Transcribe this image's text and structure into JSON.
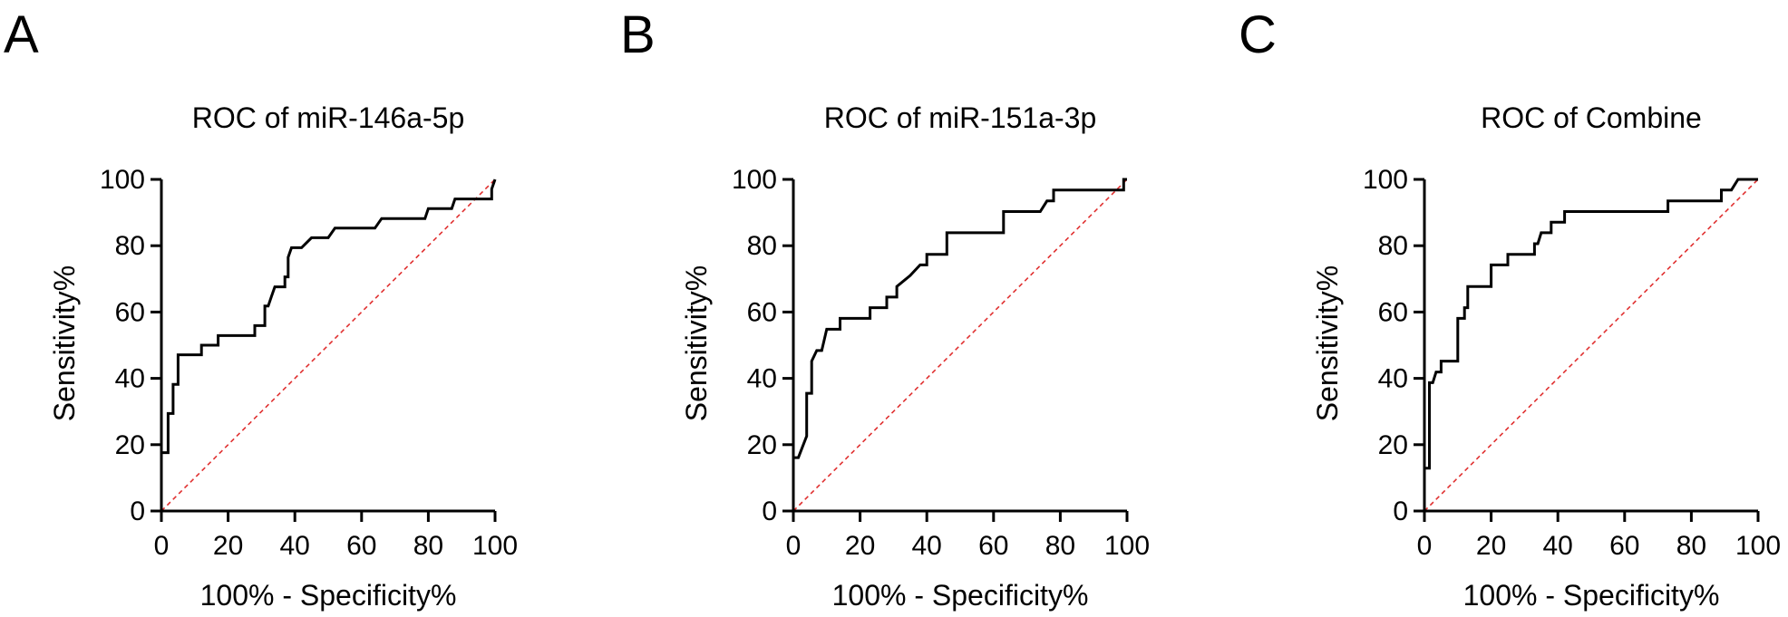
{
  "chart_data": [
    {
      "type": "line",
      "panel": "A",
      "title": "ROC of miR-146a-5p",
      "xlabel": "100% - Specificity%",
      "ylabel": "Sensitivity%",
      "xlim": [
        0,
        100
      ],
      "ylim": [
        0,
        100
      ],
      "xticks": [
        0,
        20,
        40,
        60,
        80,
        100
      ],
      "yticks": [
        0,
        20,
        40,
        60,
        80,
        100
      ],
      "grid": false,
      "series": [
        {
          "role": "roc",
          "color": "#000000",
          "points": [
            [
              0,
              0
            ],
            [
              0,
              17.6
            ],
            [
              2,
              17.6
            ],
            [
              2,
              29.4
            ],
            [
              3.5,
              29.4
            ],
            [
              3.5,
              38.2
            ],
            [
              5,
              38.2
            ],
            [
              5,
              47.1
            ],
            [
              12,
              47.1
            ],
            [
              12,
              50
            ],
            [
              17,
              50
            ],
            [
              17,
              52.9
            ],
            [
              28,
              52.9
            ],
            [
              28,
              55.9
            ],
            [
              31,
              55.9
            ],
            [
              31,
              61.8
            ],
            [
              32,
              61.8
            ],
            [
              33,
              64.7
            ],
            [
              34,
              67.6
            ],
            [
              37,
              67.6
            ],
            [
              37,
              70.6
            ],
            [
              38,
              70.6
            ],
            [
              38,
              76.5
            ],
            [
              39,
              79.4
            ],
            [
              42,
              79.4
            ],
            [
              45,
              82.4
            ],
            [
              50,
              82.4
            ],
            [
              52,
              85.3
            ],
            [
              64,
              85.3
            ],
            [
              66,
              88.2
            ],
            [
              79,
              88.2
            ],
            [
              80,
              91.2
            ],
            [
              87,
              91.2
            ],
            [
              88,
              94.1
            ],
            [
              99,
              94.1
            ],
            [
              99,
              97.1
            ],
            [
              100,
              100
            ]
          ]
        },
        {
          "role": "reference",
          "color": "#e03030",
          "points": [
            [
              0,
              0
            ],
            [
              100,
              100
            ]
          ]
        }
      ]
    },
    {
      "type": "line",
      "panel": "B",
      "title": "ROC of miR-151a-3p",
      "xlabel": "100% - Specificity%",
      "ylabel": "Sensitivity%",
      "xlim": [
        0,
        100
      ],
      "ylim": [
        0,
        100
      ],
      "xticks": [
        0,
        20,
        40,
        60,
        80,
        100
      ],
      "yticks": [
        0,
        20,
        40,
        60,
        80,
        100
      ],
      "grid": false,
      "series": [
        {
          "role": "roc",
          "color": "#000000",
          "points": [
            [
              0,
              0
            ],
            [
              0,
              16.1
            ],
            [
              1.5,
              16.1
            ],
            [
              4,
              22.6
            ],
            [
              4,
              35.5
            ],
            [
              5.5,
              35.5
            ],
            [
              5.5,
              45.2
            ],
            [
              7,
              48.4
            ],
            [
              8.5,
              48.4
            ],
            [
              10,
              54.8
            ],
            [
              14,
              54.8
            ],
            [
              14,
              58.1
            ],
            [
              23,
              58.1
            ],
            [
              23,
              61.3
            ],
            [
              28,
              61.3
            ],
            [
              28,
              64.5
            ],
            [
              31,
              64.5
            ],
            [
              31,
              67.7
            ],
            [
              35,
              71
            ],
            [
              38,
              74.2
            ],
            [
              40,
              74.2
            ],
            [
              40,
              77.4
            ],
            [
              46,
              77.4
            ],
            [
              46,
              83.9
            ],
            [
              63,
              83.9
            ],
            [
              63,
              90.3
            ],
            [
              74,
              90.3
            ],
            [
              76,
              93.5
            ],
            [
              78,
              93.5
            ],
            [
              78,
              96.8
            ],
            [
              99,
              96.8
            ],
            [
              99,
              100
            ],
            [
              100,
              100
            ]
          ]
        },
        {
          "role": "reference",
          "color": "#e03030",
          "points": [
            [
              0,
              0
            ],
            [
              100,
              100
            ]
          ]
        }
      ]
    },
    {
      "type": "line",
      "panel": "C",
      "title": "ROC of Combine",
      "xlabel": "100% - Specificity%",
      "ylabel": "Sensitivity%",
      "xlim": [
        0,
        100
      ],
      "ylim": [
        0,
        100
      ],
      "xticks": [
        0,
        20,
        40,
        60,
        80,
        100
      ],
      "yticks": [
        0,
        20,
        40,
        60,
        80,
        100
      ],
      "grid": false,
      "series": [
        {
          "role": "roc",
          "color": "#000000",
          "points": [
            [
              0,
              0
            ],
            [
              0,
              12.9
            ],
            [
              1.5,
              12.9
            ],
            [
              1.5,
              38.7
            ],
            [
              2.5,
              38.7
            ],
            [
              3.5,
              41.9
            ],
            [
              5,
              41.9
            ],
            [
              5,
              45.2
            ],
            [
              10,
              45.2
            ],
            [
              10,
              58.1
            ],
            [
              12,
              58.1
            ],
            [
              12,
              61.3
            ],
            [
              13,
              61.3
            ],
            [
              13,
              67.7
            ],
            [
              20,
              67.7
            ],
            [
              20,
              74.2
            ],
            [
              25,
              74.2
            ],
            [
              25,
              77.4
            ],
            [
              33,
              77.4
            ],
            [
              33,
              80.6
            ],
            [
              34,
              80.6
            ],
            [
              35,
              83.9
            ],
            [
              38,
              83.9
            ],
            [
              38,
              87.1
            ],
            [
              42,
              87.1
            ],
            [
              42,
              90.3
            ],
            [
              73,
              90.3
            ],
            [
              73,
              93.5
            ],
            [
              89,
              93.5
            ],
            [
              89,
              96.8
            ],
            [
              92,
              96.8
            ],
            [
              94,
              100
            ],
            [
              100,
              100
            ]
          ]
        },
        {
          "role": "reference",
          "color": "#e03030",
          "points": [
            [
              0,
              0
            ],
            [
              100,
              100
            ]
          ]
        }
      ]
    }
  ]
}
